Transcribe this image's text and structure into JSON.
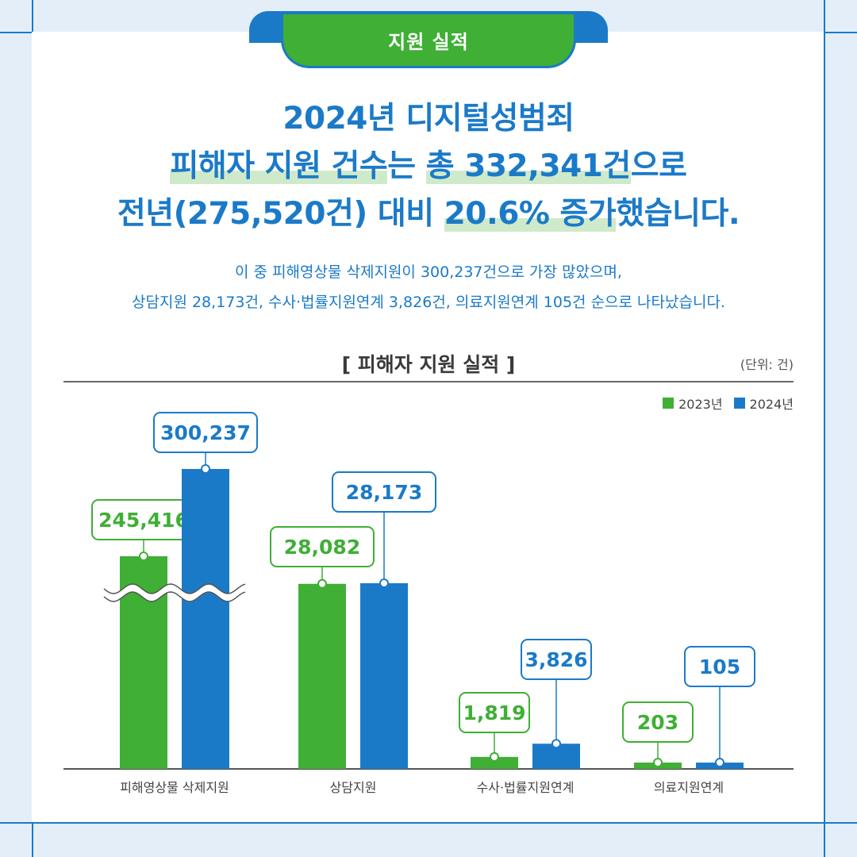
{
  "header": {
    "tab_label": "지원 실적",
    "headline_line1": "2024년 디지털성범죄",
    "headline_line2_a": "피해자 지원 건수",
    "headline_line2_b": "는 ",
    "headline_line2_c": "총 332,341건",
    "headline_line2_d": "으로",
    "headline_line3_a": "전년(275,520건) 대비 ",
    "headline_line3_b": "20.6% 증가",
    "headline_line3_c": "했습니다.",
    "sub_line1": "이 중 피해영상물 삭제지원이 300,237건으로 가장 많았으며,",
    "sub_line2": "상담지원 28,173건, 수사·법률지원연계 3,826건, 의료지원연계 105건 순으로 나타났습니다."
  },
  "colors": {
    "accent_blue": "#1b7ac8",
    "accent_green": "#3faf35",
    "highlight": "#cfeacb"
  },
  "chart_data": {
    "type": "bar",
    "title": "[ 피해자 지원 실적 ]",
    "unit_label": "(단위: 건)",
    "categories": [
      "피해영상물 삭제지원",
      "상담지원",
      "수사·법률지원연계",
      "의료지원연계"
    ],
    "series": [
      {
        "name": "2023년",
        "values": [
          245416,
          28082,
          1819,
          203
        ],
        "labels": [
          "245,416",
          "28,082",
          "1,819",
          "203"
        ],
        "color": "#3faf35"
      },
      {
        "name": "2024년",
        "values": [
          300237,
          28173,
          3826,
          105
        ],
        "labels": [
          "300,237",
          "28,173",
          "3,826",
          "105"
        ],
        "color": "#1b7ac8"
      }
    ],
    "axis_break": "피해영상물 삭제지원",
    "legend_position": "top-right"
  }
}
